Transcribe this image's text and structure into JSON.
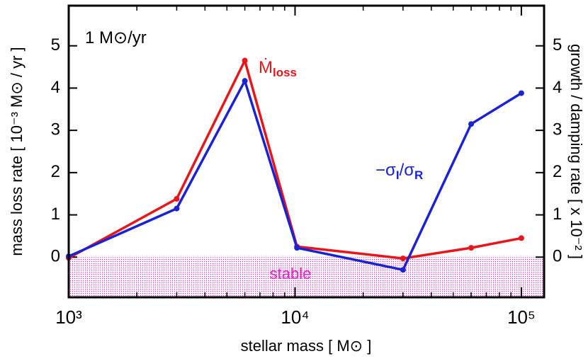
{
  "chart_data": {
    "type": "line",
    "xlabel": "stellar mass [ M⊙ ]",
    "ylabel": "mass loss rate [ 10⁻³ M⊙ / yr ]",
    "y2label": "growth / damping rate   [ x 10⁻² ]",
    "x": [
      1000,
      3000,
      6000,
      10200,
      30000,
      60000,
      100000
    ],
    "series": [
      {
        "name": "Ṁloss",
        "color": "#e8151b",
        "values": [
          -0.02,
          1.38,
          4.65,
          0.25,
          -0.03,
          0.22,
          0.45
        ]
      },
      {
        "name": "−σI/σR",
        "color": "#1a22d6",
        "axis": "y2",
        "values": [
          0.02,
          1.15,
          4.17,
          0.22,
          -0.3,
          3.15,
          3.88
        ]
      }
    ],
    "xscale": "log",
    "xlim": [
      1000,
      126000
    ],
    "xticks": [
      {
        "value": 1000,
        "label": "10³"
      },
      {
        "value": 10000,
        "label": "10⁴"
      },
      {
        "value": 100000,
        "label": "10⁵"
      }
    ],
    "xminor": [
      2000,
      3000,
      4000,
      5000,
      6000,
      7000,
      8000,
      9000,
      20000,
      30000,
      40000,
      50000,
      60000,
      70000,
      80000,
      90000
    ],
    "ylim": [
      -0.95,
      5.95
    ],
    "yticks": [
      0,
      1,
      2,
      3,
      4,
      5
    ],
    "y2lim": [
      -0.95,
      5.95
    ],
    "y2ticks": [
      0,
      1,
      2,
      3,
      4,
      5
    ],
    "annotations": [
      {
        "parts": [
          {
            "text": "1 M⊙/yr"
          }
        ],
        "color": "#000000"
      },
      {
        "parts": [
          {
            "text": "Ṁ"
          },
          {
            "sub": "loss"
          }
        ],
        "color": "#e8151b"
      },
      {
        "parts": [
          {
            "text": "−σ"
          },
          {
            "sub": "I"
          },
          {
            "text": "/σ"
          },
          {
            "sub": "R"
          }
        ],
        "color": "#1a22d6"
      }
    ],
    "region": {
      "label": "stable",
      "from": 0,
      "color": "#e020c8"
    }
  }
}
